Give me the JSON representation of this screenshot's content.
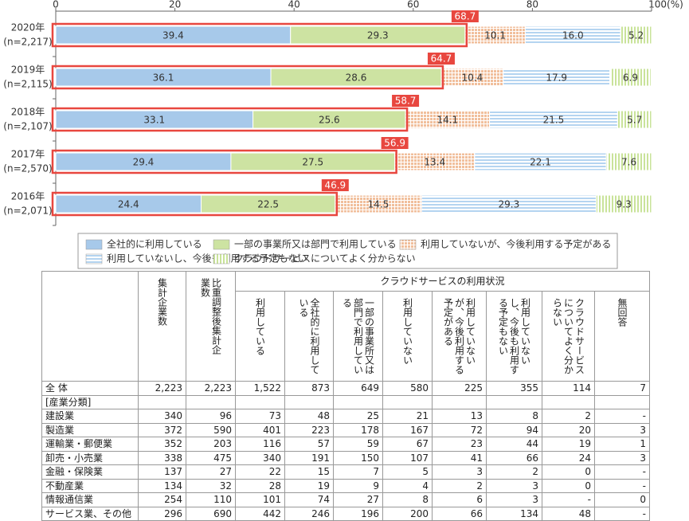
{
  "chart_data": {
    "type": "stacked-barh",
    "categories": [
      "2020年",
      "2019年",
      "2018年",
      "2017年",
      "2016年"
    ],
    "sample_sizes": [
      "(n=2,217)",
      "(n=2,115)",
      "(n=2,107)",
      "(n=2,570)",
      "(n=2,071)"
    ],
    "xlim": [
      0,
      100
    ],
    "xticks": [
      0,
      20,
      40,
      60,
      80,
      {
        "value": 100,
        "label": "100(%)"
      }
    ],
    "series": [
      {
        "name": "全社的に利用している",
        "color": "#a7c9ea",
        "pattern": "none",
        "values": [
          39.4,
          36.1,
          33.1,
          29.4,
          24.4
        ]
      },
      {
        "name": "一部の事業所又は部門で利用している",
        "color": "#cde3a2",
        "pattern": "none",
        "values": [
          29.3,
          28.6,
          25.6,
          27.5,
          22.5
        ]
      },
      {
        "name": "利用していないが、今後利用する予定がある",
        "color": "#f1bf9c",
        "pattern": "grid",
        "values": [
          10.1,
          10.4,
          14.1,
          13.4,
          14.5
        ]
      },
      {
        "name": "利用していないし、今後も利用する予定もない",
        "color": "#b4d4f0",
        "pattern": "hlines",
        "values": [
          16.0,
          17.9,
          21.5,
          22.1,
          29.3
        ],
        "value_labels": [
          "16.0",
          "17.9",
          "21.5",
          "22.1",
          "29.3"
        ]
      },
      {
        "name": "クラウドサービスについてよく分からない",
        "color": "#c9e39a",
        "pattern": "vlines",
        "values": [
          5.2,
          6.9,
          5.7,
          7.6,
          9.3
        ]
      }
    ],
    "totals": {
      "values": [
        68.7,
        64.7,
        58.7,
        56.9,
        46.9
      ],
      "color": "#e8473f"
    },
    "legend": "bottom"
  },
  "table": {
    "group_header": "クラウドサービスの利用状況",
    "columns": [
      "集計企業数",
      "比重調整後集計企業数",
      "利用している",
      "全社的に利用している",
      "一部の事業所又は部門で利用している",
      "利用していない",
      "利用していないが、今後利用する予定がある",
      "利用していないし、今後も利用する予定もない",
      "クラウドサービスについてよく分からない",
      "無回答"
    ],
    "rows": [
      [
        "全 体",
        "2,223",
        "2,223",
        "1,522",
        "873",
        "649",
        "580",
        "225",
        "355",
        "114",
        "7"
      ],
      [
        "[産業分類]"
      ],
      [
        "建設業",
        "340",
        "96",
        "73",
        "48",
        "25",
        "21",
        "13",
        "8",
        "2",
        "-"
      ],
      [
        "製造業",
        "372",
        "590",
        "401",
        "223",
        "178",
        "167",
        "72",
        "94",
        "20",
        "3"
      ],
      [
        "運輸業・郵便業",
        "352",
        "203",
        "116",
        "57",
        "59",
        "67",
        "23",
        "44",
        "19",
        "1"
      ],
      [
        "卸売・小売業",
        "338",
        "475",
        "340",
        "191",
        "150",
        "107",
        "41",
        "66",
        "24",
        "3"
      ],
      [
        "金融・保険業",
        "137",
        "27",
        "22",
        "15",
        "7",
        "5",
        "3",
        "2",
        "0",
        "-"
      ],
      [
        "不動産業",
        "134",
        "32",
        "28",
        "19",
        "9",
        "4",
        "2",
        "3",
        "0",
        "-"
      ],
      [
        "情報通信業",
        "254",
        "110",
        "101",
        "74",
        "27",
        "8",
        "6",
        "3",
        "-",
        "0"
      ],
      [
        "サービス業、その他",
        "296",
        "690",
        "442",
        "246",
        "196",
        "200",
        "66",
        "134",
        "48",
        "-"
      ]
    ]
  }
}
